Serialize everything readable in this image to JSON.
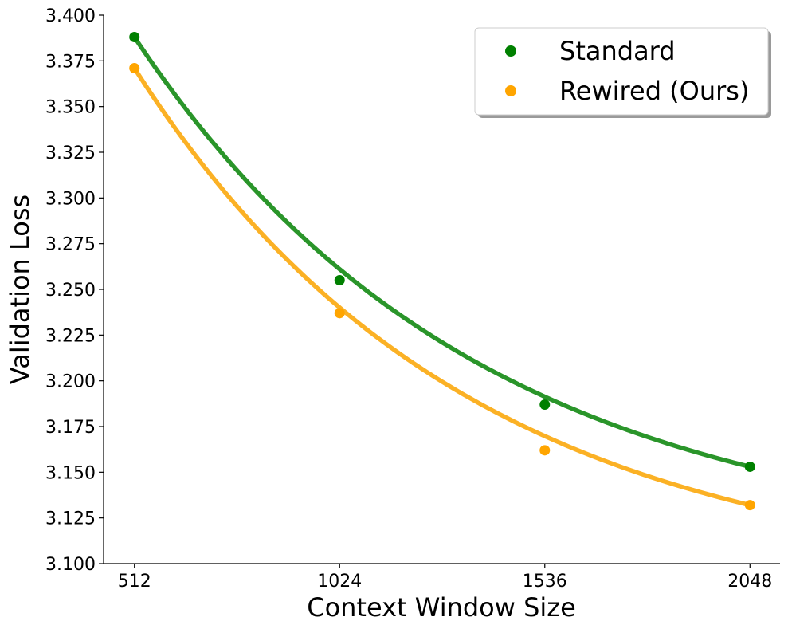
{
  "chart_data": {
    "type": "scatter",
    "title": "",
    "xlabel": "Context Window Size",
    "ylabel": "Validation Loss",
    "x": [
      512,
      1024,
      1536,
      2048
    ],
    "xticks": [
      "512",
      "1024",
      "1536",
      "2048"
    ],
    "xlim": [
      435,
      2123
    ],
    "yticks": [
      "3.100",
      "3.125",
      "3.150",
      "3.175",
      "3.200",
      "3.225",
      "3.250",
      "3.275",
      "3.300",
      "3.325",
      "3.350",
      "3.375",
      "3.400"
    ],
    "ylim": [
      3.1,
      3.4
    ],
    "grid": false,
    "legend_position": "top-right",
    "series": [
      {
        "name": "Standard",
        "color": "#008000",
        "fit_color": "#2a952a",
        "values": [
          3.388,
          3.255,
          3.187,
          3.153
        ],
        "fit_model": "exponential decay"
      },
      {
        "name": "Rewired (Ours)",
        "color": "#ffa500",
        "fit_color": "#fbb125",
        "values": [
          3.371,
          3.237,
          3.162,
          3.132
        ],
        "fit_model": "exponential decay"
      }
    ]
  }
}
